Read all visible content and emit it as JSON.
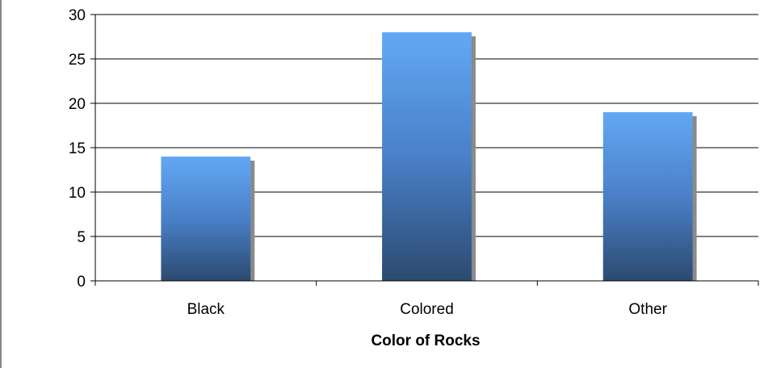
{
  "chart_data": {
    "type": "bar",
    "categories": [
      "Black",
      "Colored",
      "Other"
    ],
    "values": [
      14,
      28,
      19
    ],
    "title": "",
    "xlabel": "Color of Rocks",
    "ylabel": "",
    "ylim": [
      0,
      30
    ],
    "yticks": [
      0,
      5,
      10,
      15,
      20,
      25,
      30
    ],
    "grid": true,
    "legend": "none",
    "colors": {
      "bar_top": "#62a8f5",
      "bar_mid": "#4a80c8",
      "bar_bottom": "#2c4a70",
      "bar_shadow": "#8a8a8a",
      "gridline": "#000000",
      "axis": "#000000"
    }
  }
}
